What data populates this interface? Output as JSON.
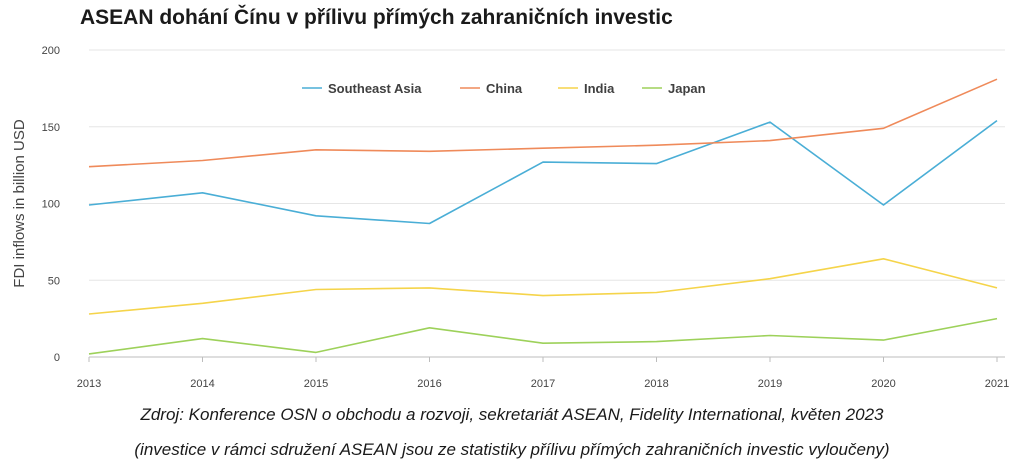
{
  "chart_data": {
    "type": "line",
    "title": "ASEAN dohání Čínu v přílivu přímých zahraničních investic",
    "ylabel": "FDI inflows in billion USD",
    "xlabel": "",
    "ylim": [
      0,
      200
    ],
    "yticks": [
      0,
      50,
      100,
      150,
      200
    ],
    "x": [
      "2013",
      "2014",
      "2015",
      "2016",
      "2017",
      "2018",
      "2019",
      "2020",
      "2021"
    ],
    "grid": "horizontal",
    "legend_position": "top-center",
    "series": [
      {
        "name": "Southeast Asia",
        "color": "#4aaed6",
        "values": [
          99,
          107,
          92,
          87,
          127,
          126,
          153,
          99,
          154
        ]
      },
      {
        "name": "China",
        "color": "#ef8a5a",
        "values": [
          124,
          128,
          135,
          134,
          136,
          138,
          141,
          149,
          181
        ]
      },
      {
        "name": "India",
        "color": "#f5d44a",
        "values": [
          28,
          35,
          44,
          45,
          40,
          42,
          51,
          64,
          45
        ]
      },
      {
        "name": "Japan",
        "color": "#9dd15a",
        "values": [
          2,
          12,
          3,
          19,
          9,
          10,
          14,
          11,
          25
        ]
      }
    ]
  },
  "source": {
    "line1": "Zdroj: Konference OSN o obchodu a rozvoji, sekretariát ASEAN, Fidelity International, květen 2023",
    "line2": "(investice v rámci sdružení ASEAN jsou ze statistiky přílivu přímých zahraničních investic vyloučeny)"
  }
}
